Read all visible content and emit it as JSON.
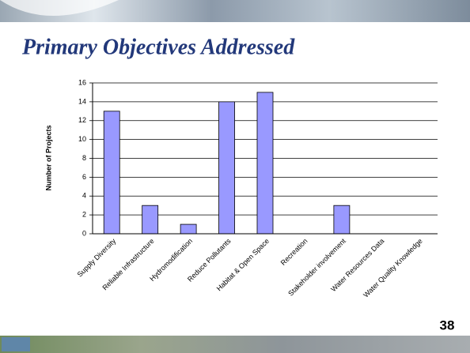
{
  "title": "Primary Objectives Addressed",
  "page_number": "38",
  "chart_data": {
    "type": "bar",
    "y_label": "Number of Projects",
    "categories": [
      "Supply Diversity",
      "Reliable Infrastructure",
      "Hydromodification",
      "Reduce Pollutants",
      "Habitat & Open Space",
      "Recreation",
      "Stakeholder involvement",
      "Water Resources Data",
      "Water Quality Knowledge"
    ],
    "values": [
      13,
      3,
      1,
      14,
      15,
      0,
      3,
      0,
      0
    ],
    "color": "#9999ff",
    "ylim": [
      0,
      16
    ],
    "yticks": [
      0,
      2,
      4,
      6,
      8,
      10,
      12,
      14,
      16
    ],
    "grid": true
  }
}
